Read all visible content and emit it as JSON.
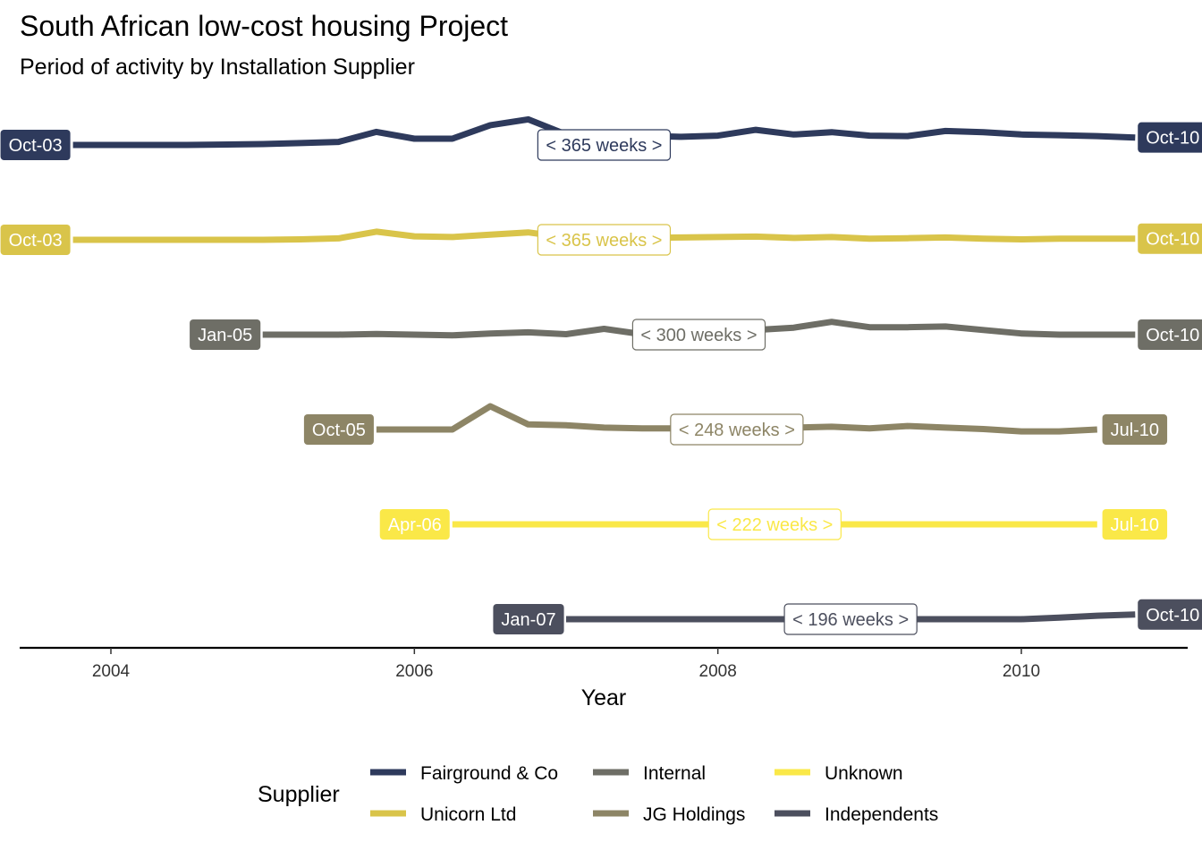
{
  "chart_data": {
    "type": "line",
    "title": "South African low-cost housing Project",
    "subtitle": "Period of activity by Installation Supplier",
    "xlabel": "Year",
    "xlim": [
      2003.55,
      2011.1
    ],
    "x_ticks": [
      2004,
      2006,
      2008,
      2010
    ],
    "x_tick_labels": [
      "2004",
      "2006",
      "2008",
      "2010"
    ],
    "grid": false,
    "legend": {
      "title": "Supplier",
      "position": "bottom"
    },
    "series": [
      {
        "name": "Fairground & Co",
        "color": "#2e3a5c",
        "start_label": "Oct-03",
        "end_label": "Oct-10",
        "duration_label": "< 365 weeks >",
        "x": [
          2003.75,
          2004.0,
          2004.5,
          2005.0,
          2005.25,
          2005.5,
          2005.75,
          2006.0,
          2006.25,
          2006.5,
          2006.75,
          2007.0,
          2007.25,
          2007.5,
          2007.75,
          2008.0,
          2008.25,
          2008.5,
          2008.75,
          2009.0,
          2009.25,
          2009.5,
          2009.75,
          2010.0,
          2010.25,
          2010.5,
          2010.75
        ],
        "y": [
          0.0,
          0.0,
          0.0,
          0.04,
          0.08,
          0.13,
          0.56,
          0.27,
          0.27,
          0.85,
          1.1,
          0.45,
          0.4,
          0.4,
          0.35,
          0.4,
          0.65,
          0.45,
          0.55,
          0.4,
          0.38,
          0.6,
          0.55,
          0.45,
          0.42,
          0.38,
          0.32
        ]
      },
      {
        "name": "Unicorn Ltd",
        "color": "#d9c44a",
        "start_label": "Oct-03",
        "end_label": "Oct-10",
        "duration_label": "< 365 weeks >",
        "x": [
          2003.75,
          2004.0,
          2004.5,
          2005.0,
          2005.25,
          2005.5,
          2005.75,
          2006.0,
          2006.25,
          2006.5,
          2006.75,
          2007.0,
          2007.25,
          2007.5,
          2007.75,
          2008.0,
          2008.25,
          2008.5,
          2008.75,
          2009.0,
          2009.25,
          2009.5,
          2009.75,
          2010.0,
          2010.25,
          2010.5,
          2010.75
        ],
        "y": [
          0.0,
          0.0,
          0.0,
          0.0,
          0.02,
          0.06,
          0.35,
          0.15,
          0.12,
          0.22,
          0.32,
          0.1,
          0.08,
          0.08,
          0.1,
          0.12,
          0.14,
          0.08,
          0.12,
          0.05,
          0.07,
          0.1,
          0.05,
          0.02,
          0.05,
          0.05,
          0.05
        ]
      },
      {
        "name": "Internal",
        "color": "#6e6e66",
        "start_label": "Jan-05",
        "end_label": "Oct-10",
        "duration_label": "< 300 weeks >",
        "x": [
          2005.0,
          2005.25,
          2005.5,
          2005.75,
          2006.0,
          2006.25,
          2006.5,
          2006.75,
          2007.0,
          2007.25,
          2007.5,
          2007.75,
          2008.0,
          2008.25,
          2008.5,
          2008.75,
          2009.0,
          2009.25,
          2009.5,
          2009.75,
          2010.0,
          2010.25,
          2010.5,
          2010.75
        ],
        "y": [
          0.0,
          0.0,
          0.0,
          0.03,
          0.0,
          -0.03,
          0.05,
          0.1,
          0.02,
          0.25,
          0.02,
          0.02,
          0.15,
          0.2,
          0.3,
          0.55,
          0.32,
          0.32,
          0.35,
          0.2,
          0.05,
          0.0,
          0.0,
          0.0
        ]
      },
      {
        "name": "JG Holdings",
        "color": "#8d8566",
        "start_label": "Oct-05",
        "end_label": "Jul-10",
        "duration_label": "< 248 weeks >",
        "x": [
          2005.75,
          2006.0,
          2006.25,
          2006.5,
          2006.75,
          2007.0,
          2007.25,
          2007.5,
          2007.75,
          2008.0,
          2008.25,
          2008.5,
          2008.75,
          2009.0,
          2009.25,
          2009.5,
          2009.75,
          2010.0,
          2010.25,
          2010.5
        ],
        "y": [
          0.0,
          0.0,
          0.0,
          1.0,
          0.22,
          0.18,
          0.08,
          0.05,
          0.05,
          0.02,
          0.02,
          0.08,
          0.12,
          0.05,
          0.15,
          0.08,
          0.02,
          -0.08,
          -0.08,
          0.0
        ]
      },
      {
        "name": "Unknown",
        "color": "#fae848",
        "start_label": "Apr-06",
        "end_label": "Jul-10",
        "duration_label": "< 222 weeks >",
        "x": [
          2006.25,
          2006.5,
          2007.0,
          2007.5,
          2008.0,
          2008.5,
          2009.0,
          2009.5,
          2010.0,
          2010.5
        ],
        "y": [
          0,
          0,
          0,
          0,
          0,
          0,
          0,
          0,
          0,
          0
        ]
      },
      {
        "name": "Independents",
        "color": "#4c4f5e",
        "start_label": "Jan-07",
        "end_label": "Oct-10",
        "duration_label": "< 196 weeks >",
        "x": [
          2007.0,
          2007.25,
          2007.5,
          2007.75,
          2008.0,
          2008.25,
          2008.5,
          2008.75,
          2009.0,
          2009.25,
          2009.5,
          2009.75,
          2010.0,
          2010.25,
          2010.5,
          2010.75
        ],
        "y": [
          0,
          0,
          0,
          0,
          0,
          0,
          0,
          0,
          0,
          0,
          0,
          0,
          0,
          0.07,
          0.15,
          0.2
        ]
      }
    ]
  }
}
